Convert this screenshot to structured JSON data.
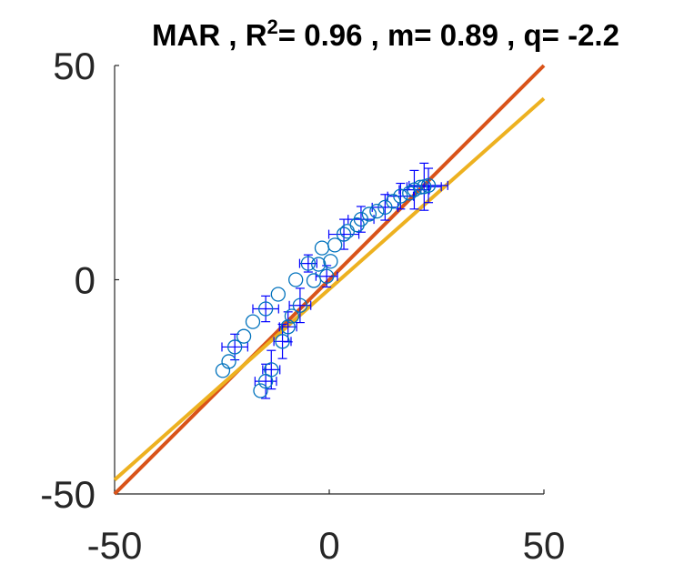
{
  "chart_data": {
    "type": "scatter",
    "title": {
      "prefix": "MAR , R",
      "superscript": "2",
      "suffix": "= 0.96 , m= 0.89 , q= -2.2"
    },
    "xlim": [
      -50,
      50
    ],
    "ylim": [
      -50,
      50
    ],
    "xticks": [
      "-50",
      "0",
      "50"
    ],
    "yticks": [
      "-50",
      "0",
      "50"
    ],
    "grid": false,
    "colors": {
      "points": "#0072bd",
      "errorbars": "#0000ff",
      "identity_line": "#d95319",
      "fit_line": "#edb120",
      "axes": "#262626"
    },
    "lines": [
      {
        "kind": "identity",
        "color": "#d95319",
        "x": [
          -50,
          50
        ],
        "y": [
          -50,
          50
        ]
      },
      {
        "kind": "fit",
        "color": "#edb120",
        "x": [
          -50,
          50
        ],
        "y": [
          -46.7,
          42.3
        ]
      }
    ],
    "points": [
      {
        "x": -24.8,
        "y": -21.2
      },
      {
        "x": -23.4,
        "y": -19.1
      },
      {
        "x": -22.0,
        "y": -15.7,
        "xerr": 3.0,
        "yerr": 3.0
      },
      {
        "x": -19.9,
        "y": -13.2
      },
      {
        "x": -17.8,
        "y": -9.8
      },
      {
        "x": -16.0,
        "y": -25.9
      },
      {
        "x": -14.8,
        "y": -23.7,
        "xerr": 2.5,
        "yerr": 4.0
      },
      {
        "x": -14.8,
        "y": -6.8,
        "xerr": 3.0,
        "yerr": 3.0
      },
      {
        "x": -13.5,
        "y": -21.0,
        "xerr": 2.0,
        "yerr": 4.5
      },
      {
        "x": -11.9,
        "y": -3.4
      },
      {
        "x": -10.9,
        "y": -14.4,
        "xerr": 2.0,
        "yerr": 4.0
      },
      {
        "x": -9.6,
        "y": -11.0,
        "xerr": 2.0,
        "yerr": 3.5
      },
      {
        "x": -8.7,
        "y": -8.5
      },
      {
        "x": -7.8,
        "y": 0.0
      },
      {
        "x": -6.8,
        "y": -6.0,
        "xerr": 2.5,
        "yerr": 4.0
      },
      {
        "x": -4.9,
        "y": 3.8,
        "xerr": 2.0,
        "yerr": 2.0
      },
      {
        "x": -3.6,
        "y": -0.2
      },
      {
        "x": -2.5,
        "y": 3.6
      },
      {
        "x": -1.7,
        "y": 7.4
      },
      {
        "x": -0.6,
        "y": 0.8,
        "xerr": 2.5,
        "yerr": 2.5
      },
      {
        "x": 0.3,
        "y": 4.3
      },
      {
        "x": 1.3,
        "y": 8.1
      },
      {
        "x": 3.4,
        "y": 10.6,
        "xerr": 3.5,
        "yerr": 3.5
      },
      {
        "x": 4.2,
        "y": 11.3
      },
      {
        "x": 6.5,
        "y": 12.8
      },
      {
        "x": 7.4,
        "y": 14.1,
        "xerr": 3.0,
        "yerr": 3.0
      },
      {
        "x": 9.3,
        "y": 15.3
      },
      {
        "x": 11.1,
        "y": 16.0
      },
      {
        "x": 13.0,
        "y": 16.9,
        "xerr": 3.0,
        "yerr": 3.0
      },
      {
        "x": 14.9,
        "y": 18.3
      },
      {
        "x": 16.6,
        "y": 19.5,
        "xerr": 3.0,
        "yerr": 3.0
      },
      {
        "x": 18.7,
        "y": 20.2
      },
      {
        "x": 19.8,
        "y": 21.0,
        "xerr": 3.5,
        "yerr": 4.5
      },
      {
        "x": 21.2,
        "y": 21.6
      },
      {
        "x": 22.1,
        "y": 21.7,
        "xerr": 4.0,
        "yerr": 5.5
      },
      {
        "x": 23.1,
        "y": 22.0,
        "xerr": 4.5,
        "yerr": 4.0
      }
    ]
  }
}
